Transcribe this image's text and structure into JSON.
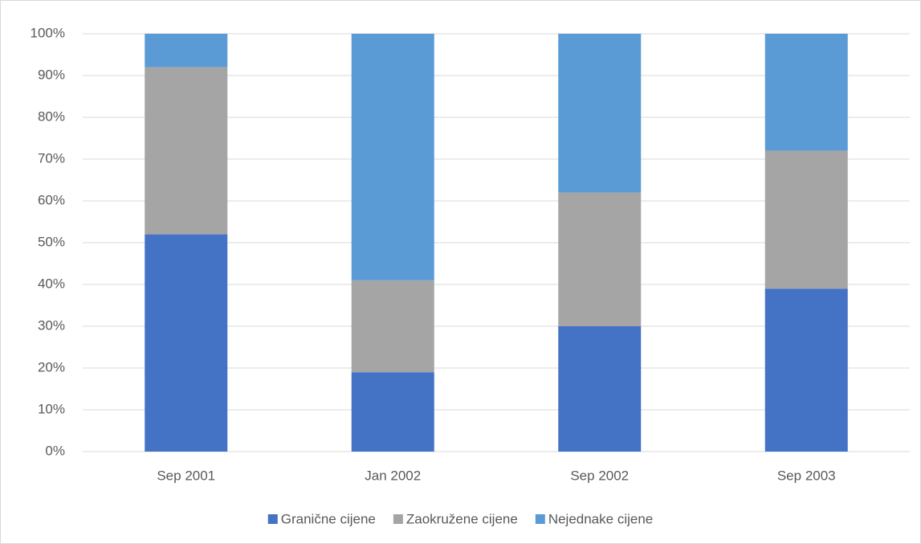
{
  "chart_data": {
    "type": "stacked_bar",
    "categories": [
      "Sep 2001",
      "Jan 2002",
      "Sep 2002",
      "Sep 2003"
    ],
    "series": [
      {
        "name": "Granične cijene",
        "color": "#4472c4",
        "values": [
          52,
          19,
          30,
          39
        ]
      },
      {
        "name": "Zaokružene cijene",
        "color": "#a5a5a5",
        "values": [
          40,
          22,
          32,
          33
        ]
      },
      {
        "name": "Nejednake cijene",
        "color": "#5b9bd5",
        "values": [
          8,
          59,
          38,
          28
        ]
      }
    ],
    "ylim": [
      0,
      100
    ],
    "yticks": [
      {
        "value": 0,
        "label": "0%"
      },
      {
        "value": 10,
        "label": "10%"
      },
      {
        "value": 20,
        "label": "20%"
      },
      {
        "value": 30,
        "label": "30%"
      },
      {
        "value": 40,
        "label": "40%"
      },
      {
        "value": 50,
        "label": "50%"
      },
      {
        "value": 60,
        "label": "60%"
      },
      {
        "value": 70,
        "label": "70%"
      },
      {
        "value": 80,
        "label": "80%"
      },
      {
        "value": 90,
        "label": "90%"
      },
      {
        "value": 100,
        "label": "100%"
      }
    ],
    "grid": true,
    "legend": "bottom"
  }
}
